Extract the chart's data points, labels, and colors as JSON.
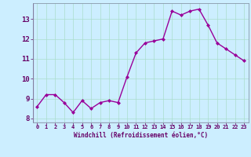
{
  "x": [
    0,
    1,
    2,
    3,
    4,
    5,
    6,
    7,
    8,
    9,
    10,
    11,
    12,
    13,
    14,
    15,
    16,
    17,
    18,
    19,
    20,
    21,
    22,
    23
  ],
  "y": [
    8.6,
    9.2,
    9.2,
    8.8,
    8.3,
    8.9,
    8.5,
    8.8,
    8.9,
    8.8,
    10.1,
    11.3,
    11.8,
    11.9,
    12.0,
    13.4,
    13.2,
    13.4,
    13.5,
    12.7,
    11.8,
    11.5,
    11.2,
    10.9
  ],
  "xlabel": "Windchill (Refroidissement éolien,°C)",
  "ylim": [
    7.8,
    13.8
  ],
  "xlim": [
    -0.5,
    23.5
  ],
  "yticks": [
    8,
    9,
    10,
    11,
    12,
    13
  ],
  "xtick_labels": [
    "0",
    "1",
    "2",
    "3",
    "4",
    "5",
    "6",
    "7",
    "8",
    "9",
    "10",
    "11",
    "12",
    "13",
    "14",
    "15",
    "16",
    "17",
    "18",
    "19",
    "20",
    "21",
    "22",
    "23"
  ],
  "line_color": "#990099",
  "marker_color": "#990099",
  "bg_color": "#cceeff",
  "grid_color": "#aaddcc",
  "font_color": "#660066",
  "tick_label_color": "#660066"
}
